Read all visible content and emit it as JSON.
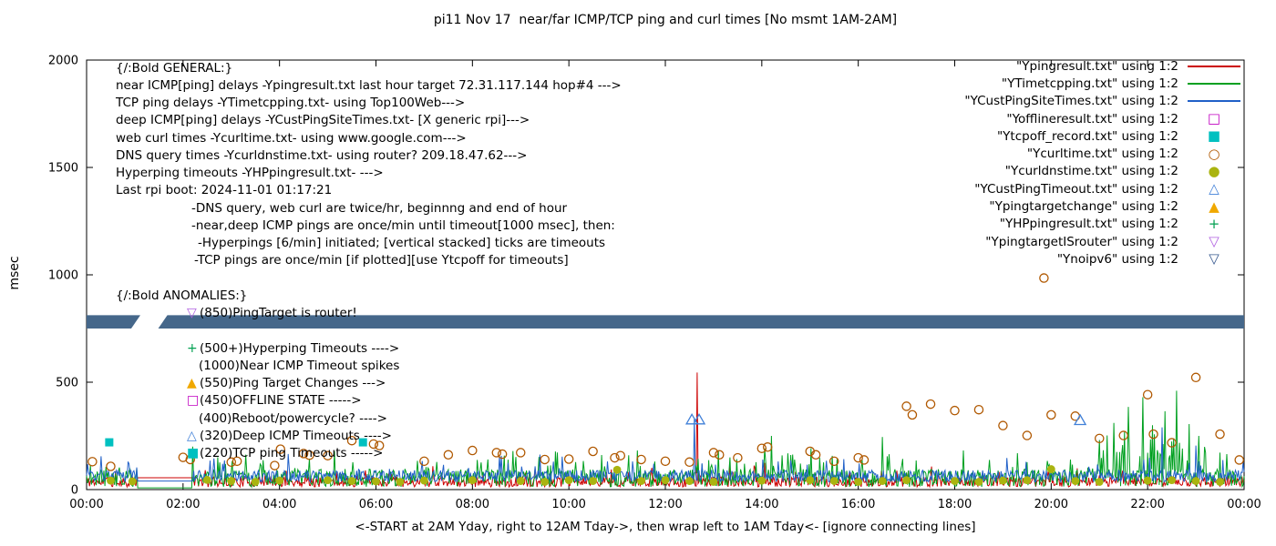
{
  "chart_data": {
    "type": "line",
    "title": "pi11 Nov 17  near/far ICMP/TCP ping and curl times [No msmt 1AM-2AM]",
    "ylabel": "msec",
    "xlabel": "<-START at 2AM Yday, right to 12AM Tday->, then wrap left to 1AM Tday<- [ignore connecting lines]",
    "xlim": [
      0,
      24
    ],
    "ylim": [
      0,
      2000
    ],
    "grid": "off",
    "legend_position": "top-right-inside",
    "yticks": [
      0,
      500,
      1000,
      1500,
      2000
    ],
    "xticks": [
      {
        "v": 0,
        "label": "00:00"
      },
      {
        "v": 2,
        "label": "02:00"
      },
      {
        "v": 4,
        "label": "04:00"
      },
      {
        "v": 6,
        "label": "06:00"
      },
      {
        "v": 8,
        "label": "08:00"
      },
      {
        "v": 10,
        "label": "10:00"
      },
      {
        "v": 12,
        "label": "12:00"
      },
      {
        "v": 14,
        "label": "14:00"
      },
      {
        "v": 16,
        "label": "16:00"
      },
      {
        "v": 18,
        "label": "18:00"
      },
      {
        "v": 20,
        "label": "20:00"
      },
      {
        "v": 22,
        "label": "22:00"
      },
      {
        "v": 24,
        "label": "00:00"
      }
    ],
    "no_msmt_window": [
      1.05,
      2.2
    ],
    "series": [
      {
        "name": "Ynoipv6",
        "type": "band",
        "color": "#45678a",
        "y_low": 750,
        "y_high": 812,
        "segments": [
          [
            0,
            1.02
          ],
          [
            1.58,
            24
          ]
        ]
      },
      {
        "name": "Ypingresult.txt",
        "type": "noisy-line",
        "color": "#cc0000",
        "base_min": 12,
        "baseline": 60,
        "spike_prob": 0.05,
        "spike_amp": 70,
        "flat": 55,
        "seed": 11,
        "spikes": [
          [
            12.65,
            545
          ]
        ]
      },
      {
        "name": "YTimetcpping.txt",
        "type": "noisy-line",
        "color": "#00a020",
        "base_min": 12,
        "baseline": 95,
        "spike_prob": 0.1,
        "spike_amp": 110,
        "flat": 8,
        "seed": 22,
        "burst": {
          "from": 21.0,
          "to": 23.3,
          "prob_mult": 3,
          "amp_mult": 1.8
        },
        "spikes": [
          [
            2.2,
            200
          ],
          [
            14.2,
            250
          ],
          [
            16.5,
            245
          ],
          [
            21.3,
            310
          ],
          [
            21.6,
            385
          ],
          [
            21.9,
            430
          ],
          [
            22.1,
            300
          ],
          [
            22.35,
            365
          ],
          [
            22.6,
            460
          ],
          [
            22.85,
            305
          ],
          [
            23.05,
            250
          ]
        ]
      },
      {
        "name": "YCustPingSiteTimes.txt",
        "type": "noisy-line",
        "color": "#2060c8",
        "base_min": 35,
        "baseline": 90,
        "spike_prob": 0.05,
        "spike_amp": 80,
        "flat": 40,
        "seed": 33,
        "spikes": [
          [
            0.3,
            155
          ],
          [
            12.6,
            330
          ],
          [
            22.3,
            290
          ],
          [
            23.0,
            205
          ]
        ]
      },
      {
        "name": "Yofflineresult.txt",
        "type": "scatter",
        "marker": "square-open",
        "color": "#c000c0",
        "points": []
      },
      {
        "name": "Ytcpoff_record.txt",
        "type": "scatter",
        "marker": "square-filled",
        "color": "#00c0c0",
        "points": [
          [
            0.47,
            220
          ],
          [
            5.73,
            220
          ]
        ]
      },
      {
        "name": "Ycurltime.txt",
        "type": "scatter",
        "marker": "circle-open",
        "color": "#b05800",
        "points": [
          [
            0.12,
            130
          ],
          [
            0.5,
            108
          ],
          [
            2.0,
            150
          ],
          [
            2.15,
            140
          ],
          [
            3.0,
            128
          ],
          [
            3.12,
            132
          ],
          [
            3.9,
            112
          ],
          [
            4.02,
            188
          ],
          [
            4.5,
            168
          ],
          [
            4.62,
            160
          ],
          [
            5.0,
            158
          ],
          [
            5.5,
            228
          ],
          [
            5.95,
            212
          ],
          [
            6.07,
            205
          ],
          [
            7.0,
            132
          ],
          [
            7.5,
            162
          ],
          [
            8.0,
            182
          ],
          [
            8.5,
            172
          ],
          [
            8.62,
            165
          ],
          [
            9.0,
            172
          ],
          [
            9.5,
            140
          ],
          [
            10.0,
            142
          ],
          [
            10.5,
            178
          ],
          [
            10.95,
            148
          ],
          [
            11.07,
            158
          ],
          [
            11.5,
            140
          ],
          [
            12.0,
            132
          ],
          [
            12.5,
            128
          ],
          [
            13.0,
            172
          ],
          [
            13.12,
            162
          ],
          [
            13.5,
            148
          ],
          [
            14.0,
            192
          ],
          [
            14.12,
            198
          ],
          [
            15.0,
            178
          ],
          [
            15.12,
            162
          ],
          [
            15.5,
            132
          ],
          [
            16.0,
            148
          ],
          [
            16.12,
            138
          ],
          [
            17.0,
            388
          ],
          [
            17.12,
            348
          ],
          [
            17.5,
            398
          ],
          [
            18.0,
            368
          ],
          [
            18.5,
            372
          ],
          [
            19.0,
            298
          ],
          [
            19.5,
            252
          ],
          [
            19.85,
            985
          ],
          [
            20.0,
            348
          ],
          [
            20.5,
            342
          ],
          [
            21.0,
            238
          ],
          [
            21.5,
            252
          ],
          [
            22.0,
            442
          ],
          [
            22.12,
            258
          ],
          [
            22.5,
            218
          ],
          [
            23.0,
            522
          ],
          [
            23.5,
            258
          ],
          [
            23.9,
            138
          ]
        ]
      },
      {
        "name": "Ycurldnstime.txt",
        "type": "scatter",
        "marker": "circle-filled",
        "color": "#aab410",
        "points": [
          [
            0.5,
            42
          ],
          [
            0.95,
            38
          ],
          [
            2.5,
            45
          ],
          [
            3.0,
            40
          ],
          [
            3.5,
            36
          ],
          [
            4.0,
            42
          ],
          [
            5.0,
            44
          ],
          [
            5.5,
            40
          ],
          [
            6.0,
            38
          ],
          [
            6.5,
            36
          ],
          [
            7.0,
            42
          ],
          [
            8.0,
            44
          ],
          [
            9.0,
            40
          ],
          [
            9.5,
            36
          ],
          [
            10.0,
            44
          ],
          [
            10.5,
            40
          ],
          [
            11.0,
            92
          ],
          [
            11.5,
            40
          ],
          [
            12.0,
            44
          ],
          [
            12.5,
            40
          ],
          [
            13.0,
            36
          ],
          [
            14.0,
            42
          ],
          [
            15.0,
            44
          ],
          [
            15.5,
            40
          ],
          [
            16.0,
            36
          ],
          [
            16.5,
            40
          ],
          [
            17.0,
            44
          ],
          [
            18.0,
            40
          ],
          [
            18.5,
            36
          ],
          [
            19.0,
            42
          ],
          [
            19.5,
            44
          ],
          [
            20.0,
            95
          ],
          [
            20.5,
            40
          ],
          [
            21.0,
            36
          ],
          [
            22.0,
            42
          ],
          [
            22.5,
            44
          ],
          [
            23.0,
            40
          ],
          [
            23.5,
            36
          ]
        ]
      },
      {
        "name": "YCustPingTimeout.txt",
        "type": "scatter",
        "marker": "triangle-open",
        "color": "#4080d8",
        "points": [
          [
            12.55,
            325
          ],
          [
            12.7,
            325
          ],
          [
            20.6,
            322
          ]
        ]
      },
      {
        "name": "Ypingtargetchange",
        "type": "scatter",
        "marker": "triangle-filled",
        "color": "#f0a800",
        "points": []
      },
      {
        "name": "YHPpingresult.txt",
        "type": "scatter",
        "marker": "plus",
        "color": "#00a050",
        "points": []
      },
      {
        "name": "YpingtargetISrouter",
        "type": "scatter",
        "marker": "triangle-down-open",
        "color": "#b060e0",
        "points": []
      }
    ]
  },
  "legend": [
    {
      "label": "\"Ypingresult.txt\" using 1:2",
      "sample": "line",
      "color": "#cc0000"
    },
    {
      "label": "\"YTimetcpping.txt\" using 1:2",
      "sample": "line",
      "color": "#00a020"
    },
    {
      "label": "\"YCustPingSiteTimes.txt\" using 1:2",
      "sample": "line",
      "color": "#2060c8"
    },
    {
      "label": "\"Yofflineresult.txt\" using 1:2",
      "sample": "square-open",
      "color": "#c000c0"
    },
    {
      "label": "\"Ytcpoff_record.txt\" using 1:2",
      "sample": "square-filled",
      "color": "#00c0c0"
    },
    {
      "label": "\"Ycurltime.txt\" using 1:2",
      "sample": "circle-open",
      "color": "#b05800"
    },
    {
      "label": "\"Ycurldnstime.txt\" using 1:2",
      "sample": "circle-filled",
      "color": "#aab410"
    },
    {
      "label": "\"YCustPingTimeout.txt\" using 1:2",
      "sample": "triangle-open",
      "color": "#4080d8"
    },
    {
      "label": "\"Ypingtargetchange\" using 1:2",
      "sample": "triangle-filled",
      "color": "#f0a800"
    },
    {
      "label": "\"YHPpingresult.txt\" using 1:2",
      "sample": "plus",
      "color": "#00a050"
    },
    {
      "label": "\"YpingtargetISrouter\" using 1:2",
      "sample": "triangle-down-open",
      "color": "#b060e0"
    },
    {
      "label": "\"Ynoipv6\" using 1:2",
      "sample": "triangle-down-open",
      "color": "#36588e"
    }
  ],
  "annotations": [
    {
      "text": "{/:Bold GENERAL:}",
      "indent": 0
    },
    {
      "text": "near ICMP[ping] delays -Ypingresult.txt last hour target 72.31.117.144 hop#4 --->",
      "indent": 0
    },
    {
      "text": "TCP ping delays -YTimetcpping.txt- using Top100Web--->",
      "indent": 0
    },
    {
      "text": "deep ICMP[ping] delays -YCustPingSiteTimes.txt- [X generic rpi]--->",
      "indent": 0
    },
    {
      "text": "web curl times -Ycurltime.txt- using www.google.com--->",
      "indent": 0
    },
    {
      "text": "DNS query times -Ycurldnstime.txt- using router? 209.18.47.62--->",
      "indent": 0
    },
    {
      "text": "Hyperping timeouts -YHPpingresult.txt- --->",
      "indent": 0
    },
    {
      "text": "Last rpi boot: 2024-11-01 01:17:21",
      "indent": 0
    },
    {
      "text": "-DNS query, web curl are twice/hr, beginnng and end of hour",
      "indent": 83
    },
    {
      "text": "-near,deep ICMP pings are once/min until timeout[1000 msec], then:",
      "indent": 83
    },
    {
      "text": "-Hyperpings [6/min] initiated; [vertical stacked] ticks are timeouts",
      "indent": 90
    },
    {
      "text": "-TCP pings are once/min [if plotted][use Ytcpoff for timeouts]",
      "indent": 86
    },
    {
      "text": "",
      "indent": 0
    },
    {
      "text": "{/:Bold ANOMALIES:}",
      "indent": 0
    },
    {
      "text": "(850)PingTarget is router!",
      "indent": 78,
      "marker": "▽",
      "mcolor": "#b060e0"
    },
    {
      "text": "",
      "indent": 78
    },
    {
      "text": "(500+)Hyperping Timeouts ---->",
      "indent": 78,
      "marker": "+",
      "mcolor": "#00a050"
    },
    {
      "text": "(1000)Near ICMP Timeout spikes",
      "indent": 91
    },
    {
      "text": "(550)Ping Target Changes --->",
      "indent": 78,
      "marker": "▲",
      "mcolor": "#f0a800"
    },
    {
      "text": "(450)OFFLINE STATE ----->",
      "indent": 78,
      "marker": "□",
      "mcolor": "#c000c0"
    },
    {
      "text": "(400)Reboot/powercycle? ---->",
      "indent": 91
    },
    {
      "text": "(320)Deep ICMP Timeouts ---->",
      "indent": 78,
      "marker": "△",
      "mcolor": "#4080d8"
    },
    {
      "text": "(220)TCP ping Timeouts ----->",
      "indent": 78,
      "marker": "■",
      "mcolor": "#00c0c0"
    }
  ]
}
